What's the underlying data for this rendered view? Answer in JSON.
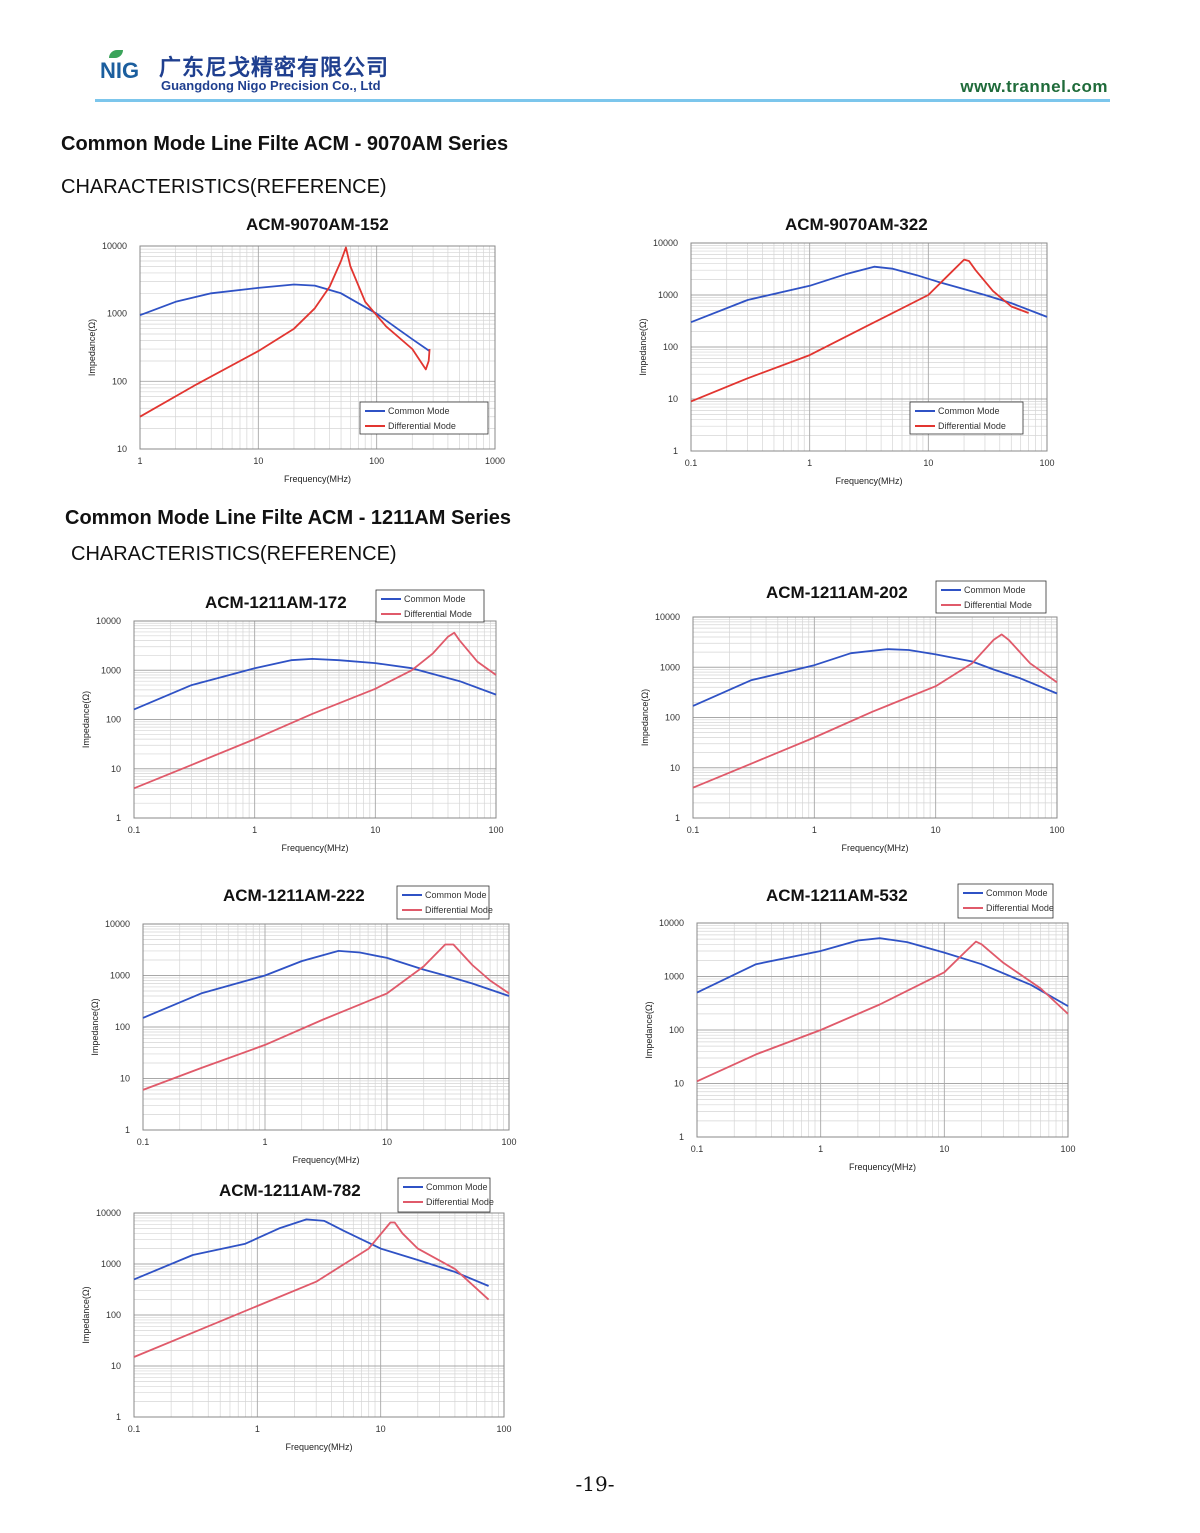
{
  "header": {
    "logo": "NIG",
    "company_cn": "广东尼戈精密有限公司",
    "company_en": "Guangdong Nigo Precision Co., Ltd",
    "website": "www.trannel.com"
  },
  "sections": [
    {
      "title": "Common Mode Line Filte ACM - 9070AM Series",
      "subtitle": "CHARACTERISTICS(REFERENCE)"
    },
    {
      "title": "Common Mode Line Filte ACM - 1211AM Series",
      "subtitle": "CHARACTERISTICS(REFERENCE)"
    }
  ],
  "page_number": "-19-",
  "colors": {
    "common": "#2f52c5",
    "diff_red": "#e23530",
    "diff_pink": "#e05a6a"
  },
  "chart_data": [
    {
      "type": "line",
      "title": "ACM-9070AM-152",
      "xlabel": "Frequency(MHz)",
      "ylabel": "Impedance(Ω)",
      "x_scale": "log",
      "y_scale": "log",
      "xlim": [
        1,
        1000
      ],
      "ylim": [
        10,
        10000
      ],
      "xticks": [
        "1",
        "10",
        "100",
        "1000"
      ],
      "yticks": [
        "10",
        "100",
        "1000",
        "10000"
      ],
      "legend": "bottom-right",
      "grid": true,
      "diff_color": "red",
      "series": [
        {
          "name": "Common Mode",
          "color": "#2f52c5",
          "x": [
            1,
            2,
            4,
            10,
            20,
            30,
            50,
            100,
            150,
            200,
            280
          ],
          "y": [
            950,
            1500,
            2000,
            2400,
            2700,
            2600,
            2000,
            1000,
            600,
            420,
            280
          ]
        },
        {
          "name": "Differential Mode",
          "color": "#e23530",
          "x": [
            1,
            3,
            10,
            20,
            30,
            40,
            50,
            55,
            60,
            80,
            120,
            200,
            260,
            275,
            280
          ],
          "y": [
            30,
            90,
            280,
            600,
            1200,
            2500,
            6000,
            9500,
            5000,
            1500,
            650,
            300,
            150,
            200,
            300
          ]
        }
      ]
    },
    {
      "type": "line",
      "title": "ACM-9070AM-322",
      "xlabel": "Frequency(MHz)",
      "ylabel": "Impedance(Ω)",
      "x_scale": "log",
      "y_scale": "log",
      "xlim": [
        0.1,
        100
      ],
      "ylim": [
        1,
        10000
      ],
      "xticks": [
        "0.1",
        "1",
        "10",
        "100"
      ],
      "yticks": [
        "1",
        "10",
        "100",
        "1000",
        "10000"
      ],
      "legend": "bottom-right",
      "grid": true,
      "diff_color": "red",
      "series": [
        {
          "name": "Common Mode",
          "color": "#2f52c5",
          "x": [
            0.1,
            0.3,
            1,
            2,
            3.5,
            5,
            8,
            12,
            20,
            30,
            50,
            100
          ],
          "y": [
            300,
            800,
            1500,
            2500,
            3500,
            3200,
            2400,
            1800,
            1300,
            1000,
            700,
            380
          ]
        },
        {
          "name": "Differential Mode",
          "color": "#e23530",
          "x": [
            0.1,
            0.3,
            1,
            3,
            10,
            15,
            20,
            22,
            25,
            35,
            50,
            70
          ],
          "y": [
            9,
            25,
            70,
            250,
            1000,
            2500,
            4800,
            4500,
            3000,
            1200,
            600,
            450
          ]
        }
      ]
    },
    {
      "type": "line",
      "title": "ACM-1211AM-172",
      "xlabel": "Frequency(MHz)",
      "ylabel": "Impedance(Ω)",
      "x_scale": "log",
      "y_scale": "log",
      "xlim": [
        0.1,
        100
      ],
      "ylim": [
        1,
        10000
      ],
      "xticks": [
        "0.1",
        "1",
        "10",
        "100"
      ],
      "yticks": [
        "1",
        "10",
        "100",
        "1000",
        "10000"
      ],
      "legend": "top-right",
      "grid": true,
      "diff_color": "pink",
      "series": [
        {
          "name": "Common Mode",
          "color": "#2f52c5",
          "x": [
            0.1,
            0.3,
            1,
            2,
            3,
            5,
            10,
            20,
            50,
            100
          ],
          "y": [
            160,
            500,
            1100,
            1600,
            1700,
            1600,
            1400,
            1100,
            600,
            320
          ]
        },
        {
          "name": "Differential Mode",
          "color": "#e05a6a",
          "x": [
            0.1,
            0.3,
            1,
            3,
            10,
            20,
            30,
            40,
            45,
            50,
            70,
            100
          ],
          "y": [
            4,
            12,
            40,
            130,
            420,
            1000,
            2200,
            4800,
            5800,
            4000,
            1500,
            800
          ]
        }
      ]
    },
    {
      "type": "line",
      "title": "ACM-1211AM-202",
      "xlabel": "Frequency(MHz)",
      "ylabel": "Impedance(Ω)",
      "x_scale": "log",
      "y_scale": "log",
      "xlim": [
        0.1,
        100
      ],
      "ylim": [
        1,
        10000
      ],
      "xticks": [
        "0.1",
        "1",
        "10",
        "100"
      ],
      "yticks": [
        "1",
        "10",
        "100",
        "1000",
        "10000"
      ],
      "legend": "top-right",
      "grid": true,
      "diff_color": "pink",
      "series": [
        {
          "name": "Common Mode",
          "color": "#2f52c5",
          "x": [
            0.1,
            0.3,
            1,
            2,
            4,
            6,
            10,
            20,
            30,
            50,
            100
          ],
          "y": [
            170,
            550,
            1100,
            1900,
            2300,
            2200,
            1800,
            1300,
            900,
            600,
            300
          ]
        },
        {
          "name": "Differential Mode",
          "color": "#e05a6a",
          "x": [
            0.1,
            0.3,
            1,
            3,
            10,
            20,
            30,
            35,
            40,
            60,
            100
          ],
          "y": [
            4,
            12,
            40,
            130,
            420,
            1200,
            3500,
            4500,
            3500,
            1200,
            500
          ]
        }
      ]
    },
    {
      "type": "line",
      "title": "ACM-1211AM-222",
      "xlabel": "Frequency(MHz)",
      "ylabel": "Impedance(Ω)",
      "x_scale": "log",
      "y_scale": "log",
      "xlim": [
        0.1,
        100
      ],
      "ylim": [
        1,
        10000
      ],
      "xticks": [
        "0.1",
        "1",
        "10",
        "100"
      ],
      "yticks": [
        "1",
        "10",
        "100",
        "1000",
        "10000"
      ],
      "legend": "top-right",
      "grid": true,
      "diff_color": "pink",
      "series": [
        {
          "name": "Common Mode",
          "color": "#2f52c5",
          "x": [
            0.1,
            0.3,
            1,
            2,
            4,
            6,
            10,
            20,
            30,
            50,
            100
          ],
          "y": [
            150,
            450,
            1000,
            1900,
            3000,
            2800,
            2200,
            1300,
            1000,
            700,
            400
          ]
        },
        {
          "name": "Differential Mode",
          "color": "#e05a6a",
          "x": [
            0.1,
            0.3,
            1,
            3,
            10,
            20,
            30,
            35,
            50,
            70,
            100
          ],
          "y": [
            6,
            16,
            45,
            140,
            450,
            1500,
            4000,
            4000,
            1600,
            800,
            450
          ]
        }
      ]
    },
    {
      "type": "line",
      "title": "ACM-1211AM-532",
      "xlabel": "Frequency(MHz)",
      "ylabel": "Impedance(Ω)",
      "x_scale": "log",
      "y_scale": "log",
      "xlim": [
        0.1,
        100
      ],
      "ylim": [
        1,
        10000
      ],
      "xticks": [
        "0.1",
        "1",
        "10",
        "100"
      ],
      "yticks": [
        "1",
        "10",
        "100",
        "1000",
        "10000"
      ],
      "legend": "top-right",
      "grid": true,
      "diff_color": "pink",
      "series": [
        {
          "name": "Common Mode",
          "color": "#2f52c5",
          "x": [
            0.1,
            0.3,
            1,
            2,
            3,
            5,
            10,
            20,
            50,
            100
          ],
          "y": [
            500,
            1700,
            3000,
            4700,
            5200,
            4400,
            2800,
            1700,
            700,
            280
          ]
        },
        {
          "name": "Differential Mode",
          "color": "#e05a6a",
          "x": [
            0.1,
            0.3,
            1,
            3,
            10,
            15,
            18,
            20,
            30,
            60,
            100
          ],
          "y": [
            11,
            35,
            100,
            300,
            1200,
            3000,
            4500,
            4000,
            1800,
            600,
            200
          ]
        }
      ]
    },
    {
      "type": "line",
      "title": "ACM-1211AM-782",
      "xlabel": "Frequency(MHz)",
      "ylabel": "Impedance(Ω)",
      "x_scale": "log",
      "y_scale": "log",
      "xlim": [
        0.1,
        100
      ],
      "ylim": [
        1,
        10000
      ],
      "xticks": [
        "0.1",
        "1",
        "10",
        "100"
      ],
      "yticks": [
        "1",
        "10",
        "100",
        "1000",
        "10000"
      ],
      "legend": "top-right",
      "grid": true,
      "diff_color": "pink",
      "series": [
        {
          "name": "Common Mode",
          "color": "#2f52c5",
          "x": [
            0.1,
            0.3,
            0.8,
            1.5,
            2.5,
            3.5,
            5,
            10,
            20,
            40,
            75
          ],
          "y": [
            500,
            1500,
            2500,
            5000,
            7500,
            7000,
            4500,
            2000,
            1200,
            700,
            370
          ]
        },
        {
          "name": "Differential Mode",
          "color": "#e05a6a",
          "x": [
            0.1,
            0.3,
            1,
            3,
            8,
            12,
            13,
            15,
            20,
            40,
            75
          ],
          "y": [
            15,
            45,
            150,
            450,
            2000,
            6500,
            6500,
            4000,
            2000,
            800,
            200
          ]
        }
      ]
    }
  ]
}
